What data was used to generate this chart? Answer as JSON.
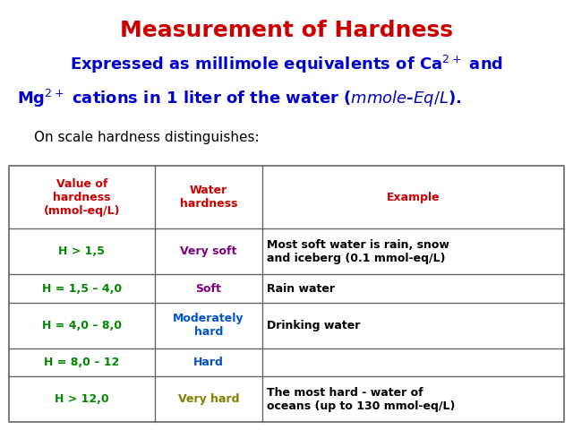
{
  "title": "Measurement of Hardness",
  "title_color": "#cc0000",
  "subtitle_color": "#0000cc",
  "intro_color": "#000000",
  "col_headers": [
    "Value of\nhardness\n(mmol-eq/L)",
    "Water\nhardness",
    "Example"
  ],
  "col_header_color": "#cc0000",
  "rows": [
    {
      "col1": "H > 1,5",
      "col1_color": "#008800",
      "col2": "Very soft",
      "col2_color": "#800080",
      "col3": "Most soft water is rain, snow\nand iceberg (0.1 mmol-eq/L)",
      "col3_color": "#000000"
    },
    {
      "col1": "H = 1,5 – 4,0",
      "col1_color": "#008800",
      "col2": "Soft",
      "col2_color": "#800080",
      "col3": "Rain water",
      "col3_color": "#000000"
    },
    {
      "col1": "H = 4,0 – 8,0",
      "col1_color": "#008800",
      "col2": "Moderately\nhard",
      "col2_color": "#0055cc",
      "col3": "Drinking water",
      "col3_color": "#000000"
    },
    {
      "col1": "H = 8,0 – 12",
      "col1_color": "#008800",
      "col2": "Hard",
      "col2_color": "#0055cc",
      "col3": "",
      "col3_color": "#000000"
    },
    {
      "col1": "H > 12,0",
      "col1_color": "#008800",
      "col2": "Very hard",
      "col2_color": "#808000",
      "col3": "The most hard - water of\noceans (up to 130 mmol-eq/L)",
      "col3_color": "#000000"
    }
  ],
  "bg_color": "#ffffff",
  "table_border_color": "#666666",
  "figsize": [
    6.4,
    4.8
  ],
  "dpi": 100,
  "title_fontsize": 18,
  "subtitle_fontsize": 13,
  "intro_fontsize": 11,
  "header_fontsize": 9,
  "cell_fontsize": 9
}
